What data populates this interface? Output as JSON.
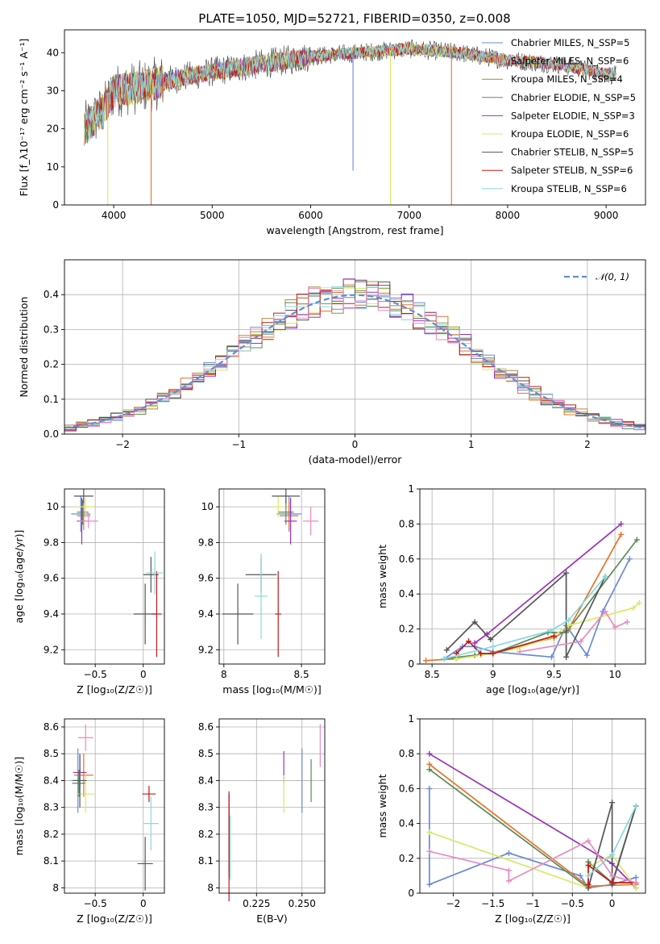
{
  "title": "PLATE=1050, MJD=52721, FIBERID=0350, z=0.008",
  "colors": {
    "c0": "#6a8bd6",
    "c1": "#e6732a",
    "c2": "#a08c3c",
    "c3": "#5a8a5a",
    "c4": "#9b30b8",
    "c5": "#d9e86a",
    "c6": "#555555",
    "c7": "#c01818",
    "c8": "#8ad8dc",
    "c9": "#e88ac0",
    "grid": "#b0b0b0"
  },
  "chart_data": [
    {
      "type": "line",
      "xlabel": "wavelength [Angstrom, rest frame]",
      "ylabel": "Flux [f_λ10⁻¹⁷ erg cm⁻² s⁻¹ A⁻¹]",
      "xlim": [
        3500,
        9400
      ],
      "ylim": [
        0,
        46
      ],
      "xticks": [
        4000,
        5000,
        6000,
        7000,
        8000,
        9000
      ],
      "yticks": [
        0,
        10,
        20,
        30,
        40
      ],
      "legend_loc": "upper right",
      "series": [
        {
          "name": "Chabrier MILES, N_SSP=5",
          "color": "#6a8bd6"
        },
        {
          "name": "Salpeter MILES, N_SSP=6",
          "color": "#e6732a"
        },
        {
          "name": "Kroupa MILES, N_SSP=4",
          "color": "#a08c3c"
        },
        {
          "name": "Chabrier ELODIE, N_SSP=5",
          "color": "#5a8a5a"
        },
        {
          "name": "Salpeter ELODIE, N_SSP=3",
          "color": "#9b30b8"
        },
        {
          "name": "Kroupa ELODIE, N_SSP=6",
          "color": "#d9e86a"
        },
        {
          "name": "Chabrier STELIB, N_SSP=5",
          "color": "#555555"
        },
        {
          "name": "Salpeter STELIB, N_SSP=6",
          "color": "#c01818"
        },
        {
          "name": "Kroupa STELIB, N_SSP=6",
          "color": "#8ad8dc"
        }
      ],
      "continuum": {
        "x": [
          3700,
          3900,
          4000,
          4300,
          4600,
          5000,
          5500,
          6000,
          6500,
          7000,
          7500,
          8000,
          8500,
          9100
        ],
        "y": [
          20,
          25,
          30,
          31,
          33,
          35,
          37,
          39,
          40,
          41,
          40,
          38,
          37,
          34
        ]
      },
      "dips": [
        {
          "x": 3940,
          "y": 0,
          "color": "#d9e86a"
        },
        {
          "x": 4380,
          "y": 0,
          "color": "#e6732a"
        },
        {
          "x": 6430,
          "y": 9,
          "color": "#6a8bd6"
        },
        {
          "x": 6810,
          "y": 0,
          "color": "#d9e86a"
        },
        {
          "x": 7430,
          "y": 0,
          "color": "#e6732a"
        }
      ]
    },
    {
      "type": "line",
      "xlabel": "(data-model)/error",
      "ylabel": "Normed distribution",
      "xlim": [
        -2.5,
        2.5
      ],
      "ylim": [
        0,
        0.5
      ],
      "xticks": [
        -2,
        -1,
        0,
        1,
        2
      ],
      "yticks": [
        0.0,
        0.1,
        0.2,
        0.3,
        0.4
      ],
      "legend": "𝒩(0, 1)",
      "legend_loc": "upper right",
      "gaussian": {
        "mean": 0,
        "sigma": 1,
        "color": "#5b8fd9"
      }
    },
    {
      "type": "scatter",
      "xlabel": "Z [log₁₀(Z/Z☉)]",
      "ylabel": "age  [log₁₀(age/yr)]",
      "xlim": [
        -0.82,
        0.22
      ],
      "ylim": [
        9.12,
        10.1
      ],
      "xticks": [
        -0.5,
        0.0
      ],
      "yticks": [
        9.2,
        9.4,
        9.6,
        9.8,
        10.0
      ],
      "points": [
        {
          "x": -0.65,
          "y": 9.96,
          "xerr": 0.1,
          "yerr": 0.1,
          "color": "#6a8bd6"
        },
        {
          "x": -0.62,
          "y": 9.95,
          "xerr": 0.07,
          "yerr": 0.08,
          "color": "#e6732a"
        },
        {
          "x": -0.63,
          "y": 9.97,
          "xerr": 0.06,
          "yerr": 0.07,
          "color": "#5a8a5a"
        },
        {
          "x": -0.64,
          "y": 9.92,
          "xerr": 0.05,
          "yerr": 0.13,
          "color": "#9b30b8"
        },
        {
          "x": -0.6,
          "y": 10.0,
          "xerr": 0.1,
          "yerr": 0.05,
          "color": "#d9e86a"
        },
        {
          "x": -0.62,
          "y": 10.06,
          "xerr": 0.1,
          "yerr": 0.04,
          "color": "#555555"
        },
        {
          "x": -0.57,
          "y": 9.92,
          "xerr": 0.1,
          "yerr": 0.04,
          "color": "#e88ac0"
        },
        {
          "x": 0.02,
          "y": 9.4,
          "xerr": 0.12,
          "yerr": 0.17,
          "color": "#555555"
        },
        {
          "x": 0.08,
          "y": 9.62,
          "xerr": 0.08,
          "yerr": 0.1,
          "color": "#555555"
        },
        {
          "x": 0.14,
          "y": 9.4,
          "xerr": 0.05,
          "yerr": 0.24,
          "color": "#c01818"
        },
        {
          "x": 0.12,
          "y": 9.63,
          "xerr": 0.09,
          "yerr": 0.12,
          "color": "#8ad8dc"
        }
      ]
    },
    {
      "type": "scatter",
      "xlabel": "mass [log₁₀(M/M☉)]",
      "ylabel": "",
      "xlim": [
        7.97,
        8.65
      ],
      "ylim": [
        9.12,
        10.1
      ],
      "xticks": [
        8.0,
        8.5
      ],
      "yticks": [
        9.2,
        9.4,
        9.6,
        9.8,
        10.0
      ],
      "points": [
        {
          "x": 8.42,
          "y": 9.96,
          "xerr": 0.08,
          "yerr": 0.1,
          "color": "#6a8bd6"
        },
        {
          "x": 8.42,
          "y": 9.95,
          "xerr": 0.06,
          "yerr": 0.08,
          "color": "#e6732a"
        },
        {
          "x": 8.4,
          "y": 9.97,
          "xerr": 0.05,
          "yerr": 0.07,
          "color": "#5a8a5a"
        },
        {
          "x": 8.43,
          "y": 9.92,
          "xerr": 0.04,
          "yerr": 0.13,
          "color": "#9b30b8"
        },
        {
          "x": 8.35,
          "y": 10.0,
          "xerr": 0.04,
          "yerr": 0.06,
          "color": "#d9e86a"
        },
        {
          "x": 8.4,
          "y": 10.06,
          "xerr": 0.09,
          "yerr": 0.04,
          "color": "#555555"
        },
        {
          "x": 8.56,
          "y": 9.92,
          "xerr": 0.05,
          "yerr": 0.08,
          "color": "#e88ac0"
        },
        {
          "x": 8.09,
          "y": 9.4,
          "xerr": 0.1,
          "yerr": 0.17,
          "color": "#555555"
        },
        {
          "x": 8.24,
          "y": 9.62,
          "xerr": 0.1,
          "yerr": 0.1,
          "color": "#555555"
        },
        {
          "x": 8.35,
          "y": 9.4,
          "xerr": 0.02,
          "yerr": 0.24,
          "color": "#c01818"
        },
        {
          "x": 8.24,
          "y": 9.5,
          "xerr": 0.04,
          "yerr": 0.24,
          "color": "#8ad8dc"
        }
      ]
    },
    {
      "type": "line",
      "xlabel": "age  [log₁₀(age/yr)]",
      "ylabel": "mass weight",
      "xlim": [
        8.4,
        10.25
      ],
      "ylim": [
        0,
        1.0
      ],
      "xticks": [
        8.5,
        9.0,
        9.5,
        10.0
      ],
      "yticks": [
        0.0,
        0.2,
        0.4,
        0.6,
        0.8,
        1.0
      ],
      "series": [
        {
          "color": "#6a8bd6",
          "x": [
            8.6,
            8.75,
            8.85,
            9.0,
            9.48,
            9.6,
            9.77,
            9.9,
            10.12
          ],
          "y": [
            0.03,
            0.1,
            0.1,
            0.07,
            0.04,
            0.22,
            0.05,
            0.3,
            0.6
          ]
        },
        {
          "color": "#e6732a",
          "x": [
            8.45,
            8.7,
            8.9,
            9.5,
            9.62,
            10.05
          ],
          "y": [
            0.02,
            0.03,
            0.05,
            0.15,
            0.2,
            0.74
          ]
        },
        {
          "color": "#5a8a5a",
          "x": [
            8.6,
            8.85,
            9.0,
            9.45,
            9.6,
            10.18
          ],
          "y": [
            0.03,
            0.05,
            0.06,
            0.18,
            0.18,
            0.71
          ]
        },
        {
          "color": "#9b30b8",
          "x": [
            8.85,
            8.95,
            10.05
          ],
          "y": [
            0.12,
            0.17,
            0.8
          ]
        },
        {
          "color": "#d9e86a",
          "x": [
            8.7,
            8.9,
            9.2,
            9.47,
            9.62,
            10.15,
            10.2
          ],
          "y": [
            0.03,
            0.05,
            0.09,
            0.15,
            0.22,
            0.32,
            0.35
          ]
        },
        {
          "color": "#555555",
          "x": [
            8.62,
            8.85,
            8.98,
            9.6,
            9.6,
            9.92
          ],
          "y": [
            0.08,
            0.24,
            0.14,
            0.52,
            0.04,
            0.5
          ]
        },
        {
          "color": "#c01818",
          "x": [
            8.7,
            8.8,
            8.9,
            9.0,
            9.5
          ],
          "y": [
            0.06,
            0.13,
            0.06,
            0.06,
            0.16
          ]
        },
        {
          "color": "#8ad8dc",
          "x": [
            8.6,
            9.0,
            9.47,
            9.62,
            9.92
          ],
          "y": [
            0.03,
            0.1,
            0.19,
            0.25,
            0.5
          ]
        },
        {
          "color": "#e88ac0",
          "x": [
            9.22,
            9.72,
            9.92,
            10.0,
            10.1
          ],
          "y": [
            0.07,
            0.13,
            0.3,
            0.21,
            0.24
          ]
        }
      ]
    },
    {
      "type": "scatter",
      "xlabel": "Z [log₁₀(Z/Z☉)]",
      "ylabel": "mass [log₁₀(M/M☉)]",
      "xlim": [
        -0.82,
        0.22
      ],
      "ylim": [
        7.98,
        8.63
      ],
      "xticks": [
        -0.5,
        0.0
      ],
      "yticks": [
        8.0,
        8.1,
        8.2,
        8.3,
        8.4,
        8.5,
        8.6
      ],
      "points": [
        {
          "x": -0.68,
          "y": 8.4,
          "xerr": 0.07,
          "yerr": 0.12,
          "color": "#6a8bd6"
        },
        {
          "x": -0.62,
          "y": 8.42,
          "xerr": 0.1,
          "yerr": 0.08,
          "color": "#e6732a"
        },
        {
          "x": -0.67,
          "y": 8.39,
          "xerr": 0.07,
          "yerr": 0.05,
          "color": "#5a8a5a"
        },
        {
          "x": -0.66,
          "y": 8.43,
          "xerr": 0.07,
          "yerr": 0.06,
          "color": "#9b30b8"
        },
        {
          "x": -0.6,
          "y": 8.35,
          "xerr": 0.1,
          "yerr": 0.07,
          "color": "#d9e86a"
        },
        {
          "x": -0.66,
          "y": 8.4,
          "xerr": 0.07,
          "yerr": 0.1,
          "color": "#555555"
        },
        {
          "x": -0.6,
          "y": 8.56,
          "xerr": 0.08,
          "yerr": 0.05,
          "color": "#e88ac0"
        },
        {
          "x": 0.02,
          "y": 8.09,
          "xerr": 0.08,
          "yerr": 0.1,
          "color": "#555555"
        },
        {
          "x": 0.06,
          "y": 8.35,
          "xerr": 0.07,
          "yerr": 0.03,
          "color": "#c01818"
        },
        {
          "x": 0.08,
          "y": 8.24,
          "xerr": 0.08,
          "yerr": 0.1,
          "color": "#8ad8dc"
        }
      ]
    },
    {
      "type": "scatter",
      "xlabel": "E(B-V)",
      "ylabel": "",
      "xlim": [
        0.2045,
        0.2625
      ],
      "ylim": [
        7.98,
        8.63
      ],
      "xticks": [
        0.225,
        0.25
      ],
      "xticklabels": [
        "0.225",
        "0.250"
      ],
      "yticks": [
        8.0,
        8.1,
        8.2,
        8.3,
        8.4,
        8.5,
        8.6
      ],
      "points": [
        {
          "x": 0.2099,
          "y": 8.2,
          "yerr": 0.16,
          "color": "#555555"
        },
        {
          "x": 0.2099,
          "y": 8.15,
          "yerr": 0.2,
          "color": "#c01818"
        },
        {
          "x": 0.2105,
          "y": 8.15,
          "yerr": 0.12,
          "color": "#8ad8dc"
        },
        {
          "x": 0.24,
          "y": 8.45,
          "yerr": 0.06,
          "color": "#9b30b8"
        },
        {
          "x": 0.24,
          "y": 8.35,
          "yerr": 0.07,
          "color": "#d9e86a"
        },
        {
          "x": 0.25,
          "y": 8.4,
          "yerr": 0.12,
          "color": "#6a8bd6"
        },
        {
          "x": 0.255,
          "y": 8.4,
          "yerr": 0.08,
          "color": "#5a8a5a"
        },
        {
          "x": 0.26,
          "y": 8.53,
          "yerr": 0.08,
          "color": "#e88ac0"
        }
      ]
    },
    {
      "type": "line",
      "xlabel": "Z [log₁₀(Z/Z☉)]",
      "ylabel": "mass weight",
      "xlim": [
        -2.42,
        0.42
      ],
      "ylim": [
        0,
        1.0
      ],
      "xticks": [
        -2.0,
        -1.5,
        -1.0,
        -0.5,
        0.0
      ],
      "yticks": [
        0.0,
        0.2,
        0.4,
        0.6,
        0.8,
        1.0
      ],
      "series": [
        {
          "color": "#6a8bd6",
          "x": [
            -2.3,
            -2.3,
            -1.3,
            -0.4,
            -0.3,
            0,
            0.3
          ],
          "y": [
            0.6,
            0.05,
            0.23,
            0.1,
            0.03,
            0.05,
            0.09
          ]
        },
        {
          "color": "#e6732a",
          "x": [
            -2.3,
            -0.3,
            0.3
          ],
          "y": [
            0.74,
            0.04,
            0.05
          ]
        },
        {
          "color": "#5a8a5a",
          "x": [
            -2.3,
            -0.3,
            -0.3,
            0,
            0.3
          ],
          "y": [
            0.71,
            0.03,
            0.18,
            0.06,
            0.5
          ]
        },
        {
          "color": "#9b30b8",
          "x": [
            -2.3,
            0.0,
            0.3
          ],
          "y": [
            0.8,
            0.17,
            0.03
          ]
        },
        {
          "color": "#d9e86a",
          "x": [
            -2.3,
            -0.3,
            -0.3,
            0,
            0.3
          ],
          "y": [
            0.35,
            0.03,
            0.15,
            0.22,
            0.03
          ]
        },
        {
          "color": "#555555",
          "x": [
            -0.3,
            0,
            0,
            0.3
          ],
          "y": [
            0.03,
            0.52,
            0.05,
            0.5
          ]
        },
        {
          "color": "#c01818",
          "x": [
            -0.3,
            -0.3,
            0,
            0.3
          ],
          "y": [
            0.05,
            0.16,
            0.06,
            0.06
          ]
        },
        {
          "color": "#8ad8dc",
          "x": [
            -0.3,
            0,
            0.3
          ],
          "y": [
            0.1,
            0.22,
            0.5
          ]
        },
        {
          "color": "#e88ac0",
          "x": [
            -2.3,
            -1.3,
            -1.3,
            -0.3,
            0,
            0.3
          ],
          "y": [
            0.24,
            0.13,
            0.07,
            0.3,
            0.1,
            0.06
          ]
        }
      ]
    }
  ]
}
